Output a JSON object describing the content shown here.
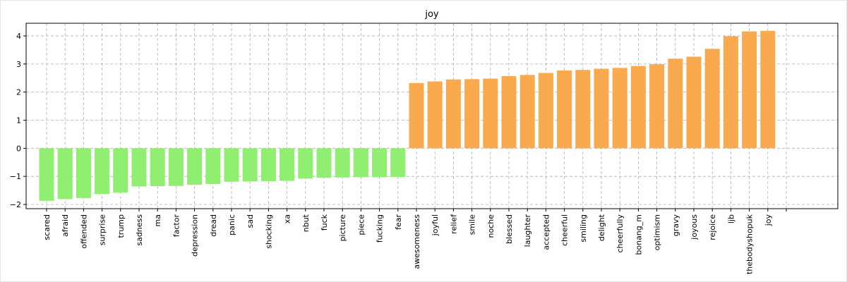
{
  "chart_data": {
    "type": "bar",
    "title": "joy",
    "xlabel": "",
    "ylabel": "",
    "ylim": [
      -2.15,
      4.45
    ],
    "yticks": [
      -2,
      -1,
      0,
      1,
      2,
      3,
      4
    ],
    "ytick_labels": [
      "−2",
      "−1",
      "0",
      "1",
      "2",
      "3",
      "4"
    ],
    "grid": true,
    "negative_color": "#90ee70",
    "positive_color": "#f9a94e",
    "categories": [
      "scared",
      "afraid",
      "offended",
      "surprise",
      "trump",
      "sadness",
      "ma",
      "factor",
      "depression",
      "dread",
      "panic",
      "sad",
      "shocking",
      "xa",
      "nbut",
      "fuck",
      "picture",
      "piece",
      "fucking",
      "fear",
      "awesomeness",
      "joyful",
      "relief",
      "smile",
      "noche",
      "blessed",
      "laughter",
      "accepted",
      "cheerful",
      "smiling",
      "delight",
      "cheerfully",
      "bonang_m",
      "optimism",
      "gravy",
      "joyous",
      "rejoice",
      "ljb",
      "thebodyshopuk",
      "joy"
    ],
    "values": [
      -1.87,
      -1.81,
      -1.77,
      -1.63,
      -1.58,
      -1.36,
      -1.35,
      -1.34,
      -1.3,
      -1.27,
      -1.19,
      -1.18,
      -1.17,
      -1.16,
      -1.08,
      -1.05,
      -1.04,
      -1.03,
      -1.03,
      -1.02,
      2.32,
      2.38,
      2.45,
      2.46,
      2.48,
      2.57,
      2.61,
      2.68,
      2.77,
      2.79,
      2.83,
      2.86,
      2.93,
      2.99,
      3.19,
      3.26,
      3.54,
      3.99,
      4.16,
      4.18
    ]
  }
}
